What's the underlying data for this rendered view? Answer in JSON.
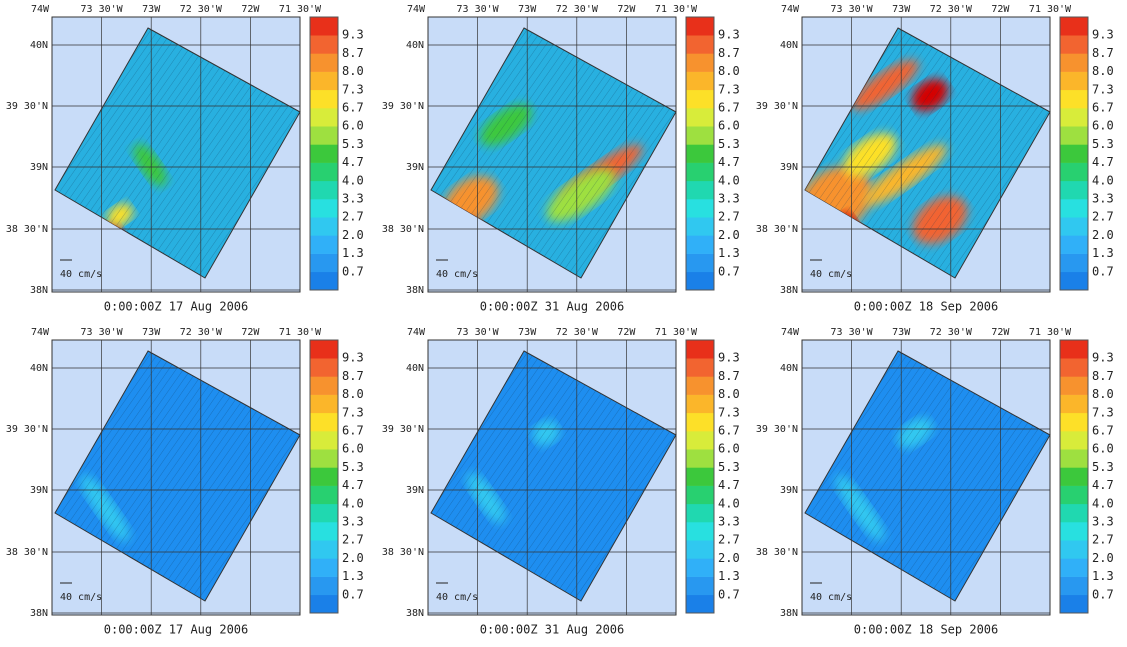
{
  "axes": {
    "lon_labels": [
      "74W",
      "73 30'W",
      "73W",
      "72 30'W",
      "72W",
      "71 30'W"
    ],
    "lat_labels": [
      "40N",
      "39 30'N",
      "39N",
      "38 30'N",
      "38N"
    ]
  },
  "colorbar": {
    "labels": [
      "0.7",
      "1.3",
      "2.0",
      "2.7",
      "3.3",
      "4.0",
      "4.7",
      "5.3",
      "6.0",
      "6.7",
      "7.3",
      "8.0",
      "8.7",
      "9.3"
    ],
    "colors": [
      "#1a80e8",
      "#2898f0",
      "#30b0f8",
      "#30c8f0",
      "#28e0e0",
      "#20d8b0",
      "#28d070",
      "#3cc83c",
      "#9ee040",
      "#d8ec3a",
      "#fde028",
      "#fbb62a",
      "#f7922e",
      "#f26430",
      "#e8301a"
    ]
  },
  "panels": [
    {
      "caption": "0:00:00Z  17 Aug 2006",
      "scale_label": "40 cm/s"
    },
    {
      "caption": "0:00:00Z  31 Aug 2006",
      "scale_label": "40 cm/s"
    },
    {
      "caption": "0:00:00Z  18 Sep 2006",
      "scale_label": "40 cm/s"
    },
    {
      "caption": "0:00:00Z  17 Aug 2006",
      "scale_label": "40 cm/s"
    },
    {
      "caption": "0:00:00Z  31 Aug 2006",
      "scale_label": "40 cm/s"
    },
    {
      "caption": "0:00:00Z  18 Sep 2006",
      "scale_label": "40 cm/s"
    }
  ]
}
